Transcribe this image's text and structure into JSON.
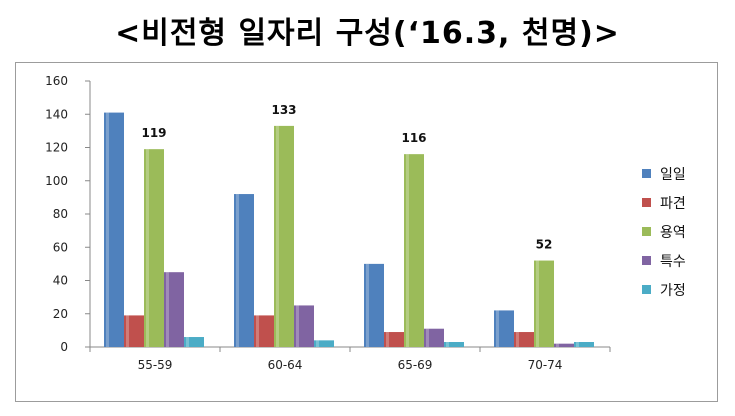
{
  "title": "<비전형 일자리 구성(‘16.3, 천명)>",
  "chart_data": {
    "type": "bar",
    "categories": [
      "55-59",
      "60-64",
      "65-69",
      "70-74"
    ],
    "ylim": [
      0,
      160
    ],
    "yticks": [
      0,
      20,
      40,
      60,
      80,
      100,
      120,
      140,
      160
    ],
    "grid": false,
    "legend_position": "right",
    "series": [
      {
        "name": "일일",
        "color": "#4f81bd",
        "values": [
          141,
          92,
          50,
          22
        ]
      },
      {
        "name": "파견",
        "color": "#c0504d",
        "values": [
          19,
          19,
          9,
          9
        ]
      },
      {
        "name": "용역",
        "color": "#9bbb59",
        "values": [
          119,
          133,
          116,
          52
        ]
      },
      {
        "name": "특수",
        "color": "#8064a2",
        "values": [
          45,
          25,
          11,
          2
        ]
      },
      {
        "name": "가정",
        "color": "#4bacc6",
        "values": [
          6,
          4,
          3,
          3
        ]
      }
    ],
    "data_labels": [
      {
        "series": "용역",
        "category": "55-59",
        "text": "119"
      },
      {
        "series": "용역",
        "category": "60-64",
        "text": "133"
      },
      {
        "series": "용역",
        "category": "65-69",
        "text": "116"
      },
      {
        "series": "용역",
        "category": "70-74",
        "text": "52"
      }
    ]
  }
}
